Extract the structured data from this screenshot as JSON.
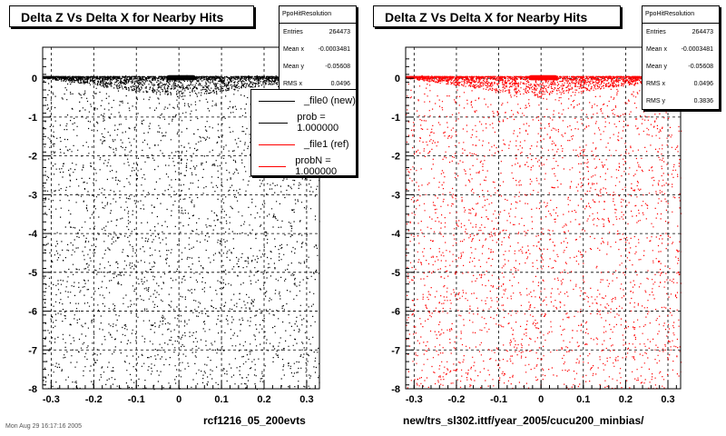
{
  "canvas": {
    "footer": "Mon Aug 29 16:17:16 2005"
  },
  "panels": [
    {
      "title": "Delta Z Vs Delta X for Nearby Hits",
      "xlabel": "rcf1216_05_200evts",
      "stats": {
        "name": "PpoHitResolution",
        "rows": [
          {
            "label": "Entries",
            "value": "264473"
          },
          {
            "label": "Mean x",
            "value": "-0.0003481"
          },
          {
            "label": "Mean y",
            "value": "-0.05608"
          },
          {
            "label": "RMS x",
            "value": "0.0496"
          }
        ]
      },
      "legend": [
        {
          "label": "_file0 (new)",
          "color": "#000000"
        },
        {
          "label": "prob = 1.000000",
          "color": "#000000"
        },
        {
          "label": "_file1 (ref)",
          "color": "#ff0000"
        },
        {
          "label": "probN = 1.000000",
          "color": "#ff0000"
        }
      ]
    },
    {
      "title": "Delta Z Vs Delta X for Nearby Hits",
      "xlabel": "new/trs_sl302.ittf/year_2005/cucu200_minbias/",
      "stats": {
        "name": "PpoHitResolution",
        "rows": [
          {
            "label": "Entries",
            "value": "264473"
          },
          {
            "label": "Mean x",
            "value": "-0.0003481"
          },
          {
            "label": "Mean y",
            "value": "-0.05608"
          },
          {
            "label": "RMS x",
            "value": "0.0496"
          },
          {
            "label": "RMS y",
            "value": "0.3836"
          }
        ]
      }
    }
  ],
  "chart_data": [
    {
      "type": "scatter",
      "title": "Delta Z Vs Delta X for Nearby Hits",
      "xlim": [
        -0.32,
        0.33
      ],
      "ylim": [
        -8,
        0.8
      ],
      "xticks": [
        -0.3,
        -0.2,
        -0.1,
        0,
        0.1,
        0.2,
        0.3
      ],
      "xtick_labels": [
        "-0.3",
        "-0.2",
        "-0.1",
        "0",
        "0.1",
        "0.2",
        "0.3"
      ],
      "yticks": [
        0,
        -1,
        -2,
        -3,
        -4,
        -5,
        -6,
        -7,
        -8
      ],
      "ytick_labels": [
        "0",
        "-1",
        "-2",
        "-3",
        "-4",
        "-5",
        "-6",
        "-7",
        "-8"
      ],
      "grid": true,
      "marker_color": "#000000",
      "core": {
        "x_range": [
          -0.03,
          0.04
        ],
        "y_range": [
          -0.05,
          0.08
        ]
      },
      "entries": 264473
    },
    {
      "type": "scatter",
      "title": "Delta Z Vs Delta X for Nearby Hits",
      "xlim": [
        -0.32,
        0.33
      ],
      "ylim": [
        -8,
        0.8
      ],
      "xticks": [
        -0.3,
        -0.2,
        -0.1,
        0,
        0.1,
        0.2,
        0.3
      ],
      "xtick_labels": [
        "-0.3",
        "-0.2",
        "-0.1",
        "0",
        "0.1",
        "0.2",
        "0.3"
      ],
      "yticks": [
        0,
        -1,
        -2,
        -3,
        -4,
        -5,
        -6,
        -7,
        -8
      ],
      "ytick_labels": [
        "0",
        "-1",
        "-2",
        "-3",
        "-4",
        "-5",
        "-6",
        "-7",
        "-8"
      ],
      "grid": true,
      "marker_color": "#ff0000",
      "core": {
        "x_range": [
          -0.03,
          0.04
        ],
        "y_range": [
          -0.05,
          0.08
        ]
      },
      "entries": 264473
    }
  ]
}
